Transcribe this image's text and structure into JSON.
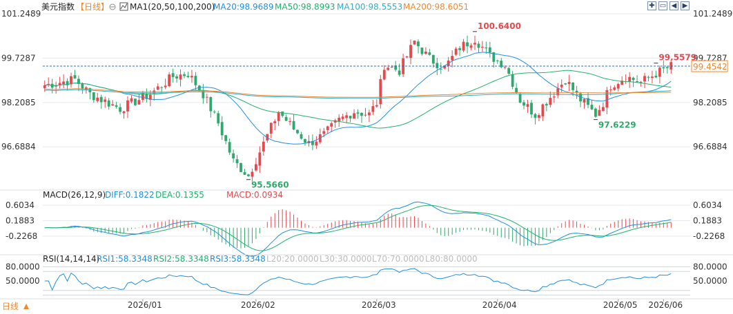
{
  "header": {
    "title": "美元指数",
    "period": "【日线】",
    "ma_label": "MA1(20,50,100,200)",
    "ma_values": [
      "MA20:98.9689",
      "MA50:98.8993",
      "MA100:98.5553",
      "MA200:98.6051"
    ]
  },
  "toolbar": {
    "buttons": [
      "zoom-in",
      "zoom-out",
      "move-left",
      "move-right"
    ]
  },
  "macd_header": {
    "label": "MACD(26,12,9)",
    "values": [
      "DIFF:0.1822",
      "DEA:0.1355",
      "MACD:0.0934"
    ]
  },
  "rsi_header": {
    "label": "RSI(14,14,14)",
    "values": [
      "RSI1:58.3348",
      "RSI2:58.3348",
      "RSI3:58.3348"
    ],
    "levels": [
      "L20:20.0000",
      "L30:30.0000",
      "L70:70.0000",
      "L80:80.0000"
    ]
  },
  "footer": {
    "period": "日线"
  },
  "colors": {
    "up": "#e5484d",
    "down": "#2fa96b",
    "ma20": "#1f8fe0",
    "ma50": "#1db36b",
    "ma100": "#2bb0c8",
    "ma200": "#f0882e",
    "grid": "#e5e8ee",
    "text": "#333333",
    "label_bg": "#1f6fd1",
    "low_text": "#2fa96b",
    "high_text": "#e5484d"
  },
  "chart_data": [
    {
      "type": "candlestick",
      "title": "美元指数",
      "y_ticks": [
        "101.2489",
        "99.7287",
        "98.2085",
        "96.6884"
      ],
      "ylim": [
        95.3,
        101.25
      ],
      "x_ticks": [
        "2026/01",
        "2026/02",
        "2026/03",
        "2026/04",
        "2026/05",
        "2026/06"
      ],
      "last_price": "99.4542",
      "annotations": {
        "high": "100.6400",
        "low": "95.5660",
        "low2": "97.6229",
        "recent_high": "99.5579"
      },
      "series": [
        {
          "name": "MA20",
          "color": "#1f8fe0"
        },
        {
          "name": "MA50",
          "color": "#1db36b"
        },
        {
          "name": "MA100",
          "color": "#2bb0c8"
        },
        {
          "name": "MA200",
          "color": "#f0882e"
        }
      ]
    },
    {
      "type": "bar",
      "title": "MACD(26,12,9)",
      "y_ticks": [
        "0.6034",
        "0.1883",
        "-0.2268"
      ],
      "ylim": [
        -0.65,
        0.75
      ],
      "series": [
        {
          "name": "DIFF",
          "color": "#1f8fe0"
        },
        {
          "name": "DEA",
          "color": "#1db36b"
        },
        {
          "name": "MACD",
          "color": "#e5484d"
        }
      ]
    },
    {
      "type": "line",
      "title": "RSI(14,14,14)",
      "y_ticks": [
        "80.0000",
        "50.0000"
      ],
      "ylim": [
        15,
        85
      ],
      "levels": [
        80,
        70,
        30,
        20
      ],
      "series": [
        {
          "name": "RSI1",
          "color": "#1f8fe0"
        }
      ]
    }
  ]
}
